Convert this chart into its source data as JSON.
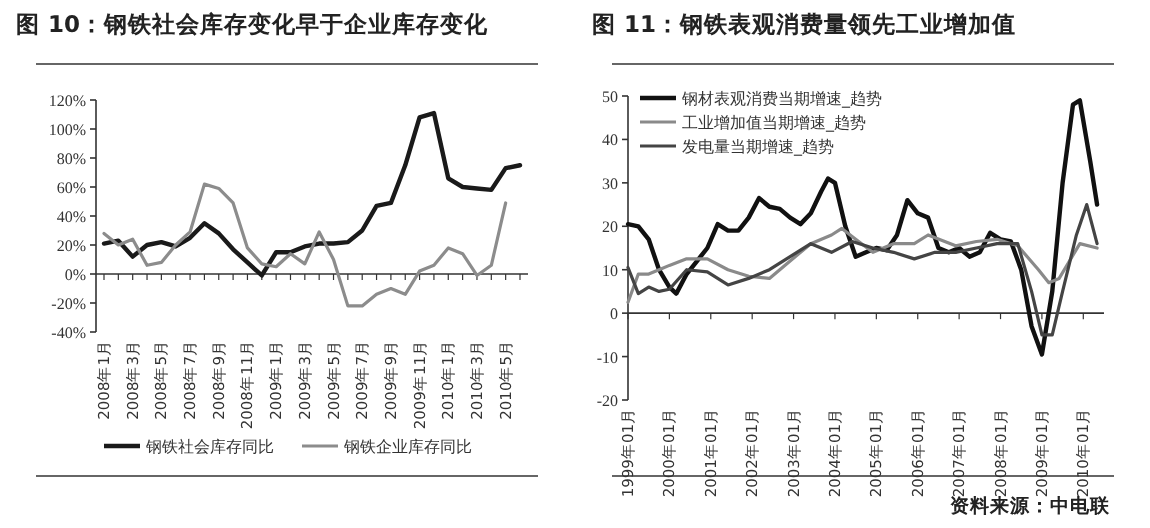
{
  "chart_data": [
    {
      "type": "line",
      "title": "图 10：钢铁社会库存变化早于企业库存变化",
      "categories": [
        "2008年1月",
        null,
        "2008年3月",
        null,
        "2008年5月",
        null,
        "2008年7月",
        null,
        "2008年9月",
        null,
        "2008年11月",
        null,
        "2009年1月",
        null,
        "2009年3月",
        null,
        "2009年5月",
        null,
        "2009年7月",
        null,
        "2009年9月",
        null,
        "2009年11月",
        null,
        "2010年1月",
        null,
        "2010年3月",
        null,
        "2010年5月",
        null
      ],
      "series": [
        {
          "name": "钢铁社会库存同比",
          "color": "#1a1a1a",
          "values": [
            21,
            23,
            12,
            20,
            22,
            19,
            25,
            35,
            28,
            17,
            8,
            -1,
            15,
            15,
            19,
            21,
            21,
            22,
            30,
            47,
            49,
            75,
            108,
            111,
            66,
            60,
            59,
            58,
            73,
            75
          ]
        },
        {
          "name": "钢铁企业库存同比",
          "color": "#8c8c8c",
          "values": [
            28,
            20,
            24,
            6,
            8,
            20,
            29,
            62,
            59,
            49,
            18,
            7,
            5,
            14,
            7,
            29,
            10,
            -22,
            -22,
            -14,
            -10,
            -14,
            2,
            6,
            18,
            14,
            -1,
            6,
            49,
            null
          ]
        }
      ],
      "ylim": [
        -40,
        120
      ],
      "yticks": [
        {
          "value": -40,
          "label": "-40%"
        },
        {
          "value": -20,
          "label": "-20%"
        },
        {
          "value": 0,
          "label": "0%"
        },
        {
          "value": 20,
          "label": "20%"
        },
        {
          "value": 40,
          "label": "40%"
        },
        {
          "value": 60,
          "label": "60%"
        },
        {
          "value": 80,
          "label": "80%"
        },
        {
          "value": 100,
          "label": "100%"
        },
        {
          "value": 120,
          "label": "120%"
        }
      ],
      "legend": "bottom",
      "marker": "none",
      "line_style": "solid"
    },
    {
      "type": "line",
      "title": "图 11：钢铁表观消费量领先工业增加值",
      "annotations": [
        "资料来源：中电联"
      ],
      "series": [
        {
          "name": "钢材表观消费当期增速_趋势",
          "color": "#111111",
          "x": [
            "1999-01",
            "1999-04",
            "1999-07",
            "1999-10",
            "2000-01",
            "2000-03",
            "2000-06",
            "2000-09",
            "2000-12",
            "2001-03",
            "2001-06",
            "2001-09",
            "2001-12",
            "2002-03",
            "2002-06",
            "2002-09",
            "2002-12",
            "2003-03",
            "2003-06",
            "2003-09",
            "2003-11",
            "2004-01",
            "2004-04",
            "2004-07",
            "2004-10",
            "2005-01",
            "2005-04",
            "2005-07",
            "2005-10",
            "2006-01",
            "2006-04",
            "2006-07",
            "2006-10",
            "2007-01",
            "2007-04",
            "2007-07",
            "2007-10",
            "2008-01",
            "2008-04",
            "2008-07",
            "2008-10",
            "2009-01",
            "2009-04",
            "2009-07",
            "2009-10",
            "2009-12",
            "2010-03",
            "2010-05"
          ],
          "values": [
            20.5,
            20,
            17,
            10,
            6,
            4.5,
            9,
            12,
            15,
            20.5,
            19,
            19,
            22,
            26.5,
            24.5,
            24,
            22,
            20.5,
            23,
            28,
            31,
            30,
            20,
            13,
            14,
            15,
            14.5,
            18,
            26,
            23,
            22,
            15,
            14,
            15,
            13,
            14,
            18.5,
            17,
            16.5,
            10,
            -3,
            -9.5,
            5,
            30,
            48,
            49,
            35,
            25
          ]
        },
        {
          "name": "工业增加值当期增速_趋势",
          "color": "#8a8a8a",
          "x": [
            "1999-01",
            "1999-04",
            "1999-07",
            "1999-10",
            "2000-01",
            "2000-06",
            "2000-12",
            "2001-06",
            "2001-12",
            "2002-06",
            "2002-12",
            "2003-06",
            "2003-12",
            "2004-03",
            "2004-07",
            "2004-12",
            "2005-06",
            "2005-12",
            "2006-04",
            "2006-12",
            "2007-06",
            "2007-12",
            "2008-06",
            "2008-12",
            "2009-03",
            "2009-06",
            "2009-12",
            "2010-05"
          ],
          "values": [
            2.5,
            9,
            9,
            10,
            11,
            12.5,
            12.5,
            10,
            8.5,
            8,
            12,
            16,
            18,
            19.5,
            17,
            14,
            16,
            16,
            18,
            15.5,
            16.5,
            17,
            15.5,
            10,
            7,
            8,
            16,
            15
          ]
        },
        {
          "name": "发电量当期增速_趋势",
          "color": "#444444",
          "x": [
            "1999-01",
            "1999-04",
            "1999-07",
            "1999-10",
            "2000-01",
            "2000-06",
            "2000-12",
            "2001-06",
            "2001-12",
            "2002-06",
            "2002-12",
            "2003-06",
            "2003-12",
            "2004-06",
            "2004-12",
            "2005-06",
            "2005-12",
            "2006-06",
            "2006-12",
            "2007-06",
            "2007-12",
            "2008-06",
            "2008-10",
            "2009-01",
            "2009-04",
            "2009-07",
            "2009-11",
            "2010-02",
            "2010-05"
          ],
          "values": [
            10.5,
            4.5,
            6,
            5,
            5.5,
            10,
            9.5,
            6.5,
            8,
            10,
            13,
            16,
            14,
            16.5,
            15,
            14,
            12.5,
            14,
            14,
            15,
            16,
            16,
            5,
            -5,
            -5,
            5,
            18,
            25,
            16
          ]
        }
      ],
      "xlim": [
        "1999-01",
        "2010-07"
      ],
      "xticks": [
        {
          "value": "1999-01",
          "label": "1999年01月"
        },
        {
          "value": "2000-01",
          "label": "2000年01月"
        },
        {
          "value": "2001-01",
          "label": "2001年01月"
        },
        {
          "value": "2002-01",
          "label": "2002年01月"
        },
        {
          "value": "2003-01",
          "label": "2003年01月"
        },
        {
          "value": "2004-01",
          "label": "2004年01月"
        },
        {
          "value": "2005-01",
          "label": "2005年01月"
        },
        {
          "value": "2006-01",
          "label": "2006年01月"
        },
        {
          "value": "2007-01",
          "label": "2007年01月"
        },
        {
          "value": "2008-01",
          "label": "2008年01月"
        },
        {
          "value": "2009-01",
          "label": "2009年01月"
        },
        {
          "value": "2010-01",
          "label": "2010年01月"
        }
      ],
      "ylim": [
        -20,
        50
      ],
      "yticks": [
        -20,
        -10,
        0,
        10,
        20,
        30,
        40,
        50
      ],
      "legend": "top left",
      "marker": "none",
      "line_style": "solid"
    }
  ]
}
